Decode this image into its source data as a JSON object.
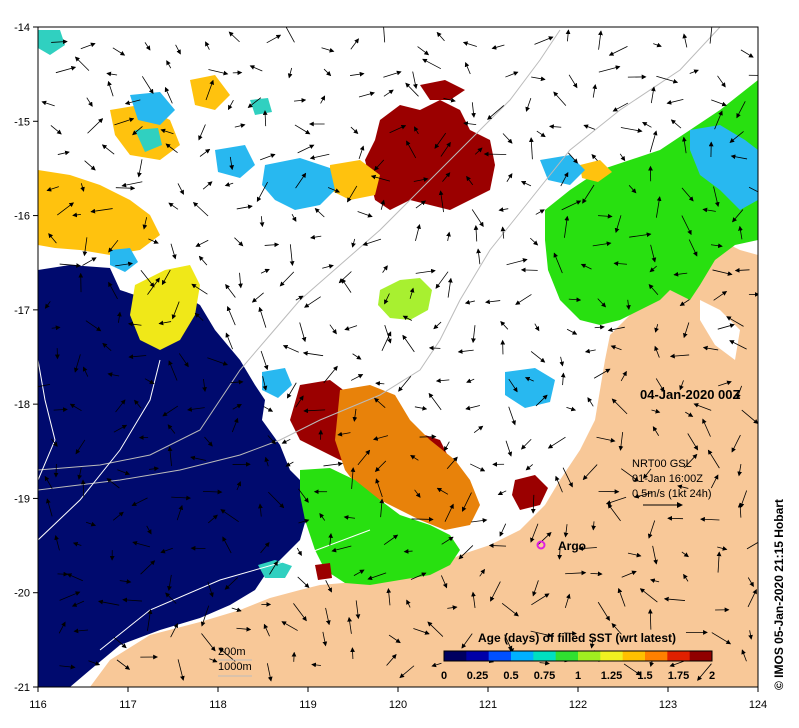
{
  "map": {
    "date_label": "04-Jan-2020 00Z",
    "product_line": "NRT00 GSL",
    "product_time": "01-Jan 16:00Z",
    "velocity_scale": "0.5m/s (1kt 24h)",
    "argo_label": "Argo",
    "contour_200_label": "200m",
    "contour_1000_label": "1000m",
    "copyright": "© IMOS 05-Jan-2020 21:15 Hobart",
    "longitude_ticks": [
      "116",
      "117",
      "118",
      "119",
      "120",
      "121",
      "122",
      "123",
      "124"
    ],
    "latitude_ticks": [
      "-14",
      "-15",
      "-16",
      "-17",
      "-18",
      "-19",
      "-20",
      "-21"
    ],
    "colors": {
      "land": "#f8c898",
      "deep_navy": "#000a6e",
      "dark_red": "#9b0000",
      "orange": "#e8820a",
      "gold": "#ffc20e",
      "yellow": "#f0e818",
      "lime": "#a8f030",
      "green": "#28e010",
      "sky_blue": "#28b8f0",
      "turquoise": "#30d0c0",
      "argo_marker": "#e020e0"
    }
  },
  "colorbar": {
    "title": "Age (days) of filled SST (wrt latest)",
    "tick_labels": [
      "0",
      "0.25",
      "0.5",
      "0.75",
      "1",
      "1.25",
      "1.5",
      "1.75",
      "2"
    ],
    "colors": [
      "#000060",
      "#0000a8",
      "#0050ff",
      "#00b0ff",
      "#00e0c0",
      "#30e030",
      "#a0ee20",
      "#f0f020",
      "#ffc000",
      "#ff8000",
      "#e02000",
      "#900000"
    ]
  }
}
